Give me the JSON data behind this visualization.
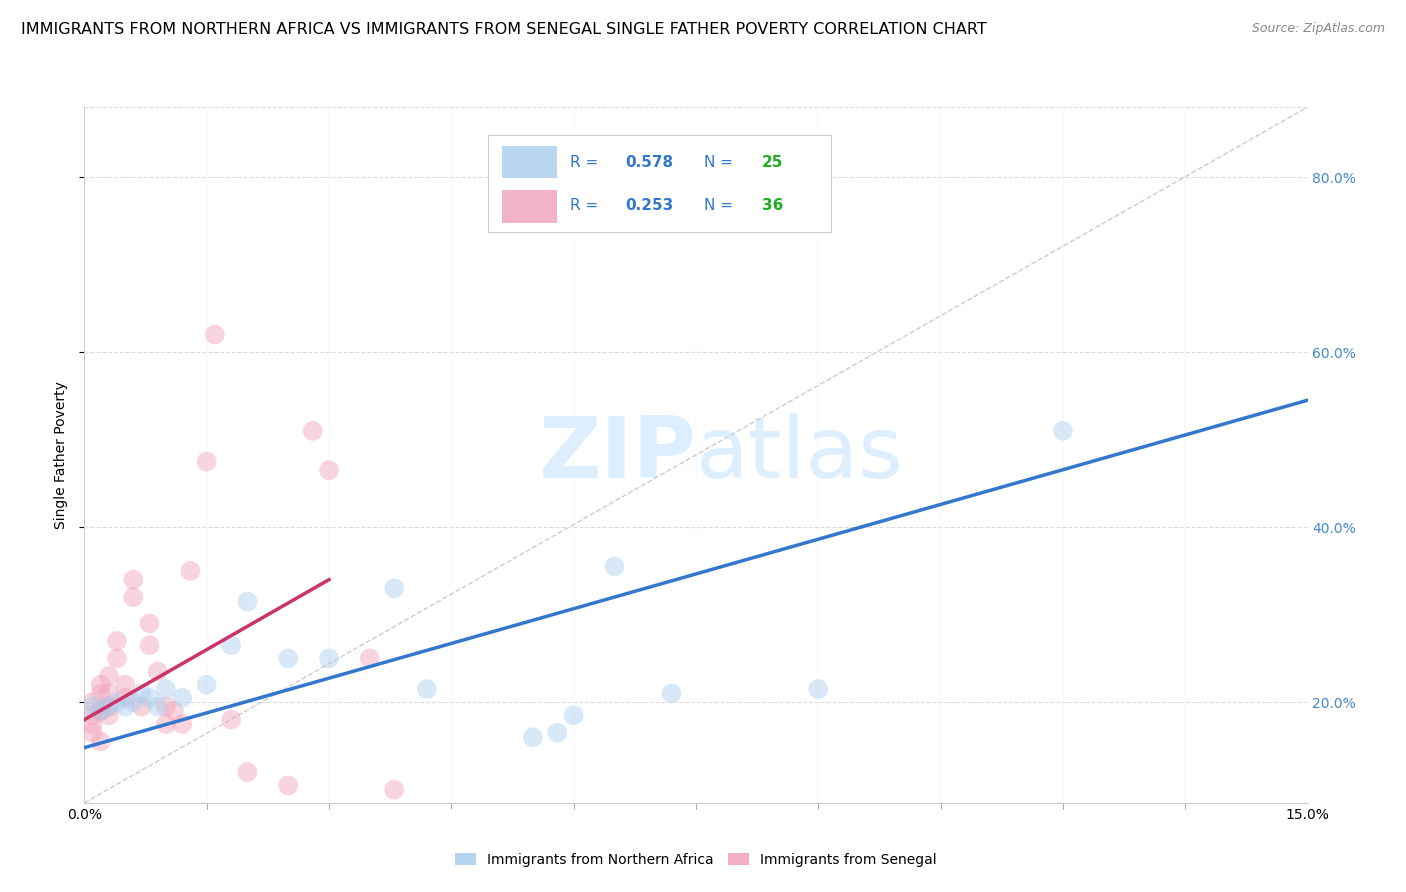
{
  "title": "IMMIGRANTS FROM NORTHERN AFRICA VS IMMIGRANTS FROM SENEGAL SINGLE FATHER POVERTY CORRELATION CHART",
  "source": "Source: ZipAtlas.com",
  "ylabel": "Single Father Poverty",
  "y_ticks": [
    0.2,
    0.4,
    0.6,
    0.8
  ],
  "y_tick_labels": [
    "20.0%",
    "40.0%",
    "60.0%",
    "80.0%"
  ],
  "x_minor_ticks": [
    0.0,
    0.015,
    0.03,
    0.045,
    0.06,
    0.075,
    0.09,
    0.105,
    0.12,
    0.135,
    0.15
  ],
  "xlim": [
    0.0,
    0.15
  ],
  "ylim": [
    0.085,
    0.88
  ],
  "blue_scatter_x": [
    0.001,
    0.002,
    0.003,
    0.004,
    0.005,
    0.006,
    0.007,
    0.008,
    0.009,
    0.01,
    0.012,
    0.015,
    0.018,
    0.02,
    0.025,
    0.03,
    0.038,
    0.042,
    0.055,
    0.058,
    0.06,
    0.065,
    0.072,
    0.09,
    0.12
  ],
  "blue_scatter_y": [
    0.195,
    0.19,
    0.195,
    0.2,
    0.195,
    0.2,
    0.21,
    0.205,
    0.195,
    0.215,
    0.205,
    0.22,
    0.265,
    0.315,
    0.25,
    0.25,
    0.33,
    0.215,
    0.16,
    0.165,
    0.185,
    0.355,
    0.21,
    0.215,
    0.51
  ],
  "pink_scatter_x": [
    0.001,
    0.001,
    0.001,
    0.001,
    0.002,
    0.002,
    0.002,
    0.002,
    0.003,
    0.003,
    0.003,
    0.003,
    0.004,
    0.004,
    0.005,
    0.005,
    0.006,
    0.006,
    0.007,
    0.008,
    0.008,
    0.009,
    0.01,
    0.01,
    0.011,
    0.012,
    0.013,
    0.015,
    0.016,
    0.018,
    0.02,
    0.025,
    0.028,
    0.03,
    0.035,
    0.038
  ],
  "pink_scatter_y": [
    0.185,
    0.2,
    0.175,
    0.165,
    0.19,
    0.21,
    0.22,
    0.155,
    0.185,
    0.195,
    0.21,
    0.23,
    0.25,
    0.27,
    0.205,
    0.22,
    0.32,
    0.34,
    0.195,
    0.265,
    0.29,
    0.235,
    0.195,
    0.175,
    0.19,
    0.175,
    0.35,
    0.475,
    0.62,
    0.18,
    0.12,
    0.105,
    0.51,
    0.465,
    0.25,
    0.1
  ],
  "blue_line_x": [
    0.0,
    0.15
  ],
  "blue_line_y": [
    0.148,
    0.545
  ],
  "pink_line_x": [
    0.0,
    0.03
  ],
  "pink_line_y": [
    0.18,
    0.34
  ],
  "scatter_size": 200,
  "scatter_alpha": 0.45,
  "blue_color": "#aaccee",
  "pink_color": "#f0a0b8",
  "blue_line_color": "#3377cc",
  "pink_line_color": "#cc3366",
  "diag_line_color": "#cccccc",
  "grid_color": "#dddddd",
  "watermark_zip": "ZIP",
  "watermark_atlas": "atlas",
  "watermark_color": "#ddeeff",
  "watermark_fontsize": 62,
  "title_fontsize": 11.5,
  "axis_label_fontsize": 10,
  "tick_fontsize": 10,
  "right_axis_color": "#4488cc",
  "legend_blue_r": "0.578",
  "legend_blue_n": "25",
  "legend_pink_r": "0.253",
  "legend_pink_n": "36",
  "legend_text_color": "#3377cc",
  "legend_n_color": "#22aa22",
  "bottom_legend_labels": [
    "Immigrants from Northern Africa",
    "Immigrants from Senegal"
  ]
}
